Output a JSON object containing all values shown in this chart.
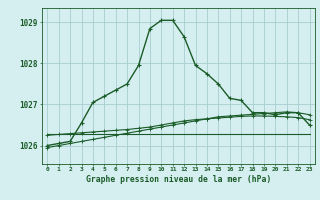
{
  "title": "Graphe pression niveau de la mer (hPa)",
  "xlabel_hours": [
    0,
    1,
    2,
    3,
    4,
    5,
    6,
    7,
    8,
    9,
    10,
    11,
    12,
    13,
    14,
    15,
    16,
    17,
    18,
    19,
    20,
    21,
    22,
    23
  ],
  "ylim": [
    1025.55,
    1029.35
  ],
  "yticks": [
    1026,
    1027,
    1028,
    1029
  ],
  "background_color": "#d5eef0",
  "grid_color": "#a8cdd0",
  "line_color": "#1a5c28",
  "main_line": {
    "x": [
      0,
      1,
      2,
      3,
      4,
      5,
      6,
      7,
      8,
      9,
      10,
      11,
      12,
      13,
      14,
      15,
      16,
      17,
      18,
      19,
      20,
      21,
      22,
      23
    ],
    "y": [
      1026.0,
      1026.05,
      1026.1,
      1026.55,
      1027.05,
      1027.2,
      1027.35,
      1027.5,
      1027.95,
      1028.85,
      1029.05,
      1029.05,
      1028.65,
      1027.95,
      1027.75,
      1027.5,
      1027.15,
      1027.1,
      1026.8,
      1026.8,
      1026.75,
      1026.8,
      1026.8,
      1026.5
    ]
  },
  "line2": {
    "x": [
      0,
      1,
      2,
      3,
      4,
      5,
      6,
      7,
      8,
      9,
      10,
      11,
      12,
      13,
      14,
      15,
      16,
      17,
      18,
      19,
      20,
      21,
      22,
      23
    ],
    "y": [
      1025.95,
      1026.0,
      1026.05,
      1026.1,
      1026.15,
      1026.2,
      1026.25,
      1026.3,
      1026.35,
      1026.4,
      1026.45,
      1026.5,
      1026.55,
      1026.6,
      1026.65,
      1026.7,
      1026.72,
      1026.74,
      1026.76,
      1026.78,
      1026.8,
      1026.82,
      1026.8,
      1026.75
    ]
  },
  "line3": {
    "x": [
      0,
      1,
      2,
      3,
      4,
      5,
      6,
      7,
      8,
      9,
      10,
      11,
      12,
      13,
      14,
      15,
      16,
      17,
      18,
      19,
      20,
      21,
      22,
      23
    ],
    "y": [
      1026.25,
      1026.27,
      1026.29,
      1026.31,
      1026.33,
      1026.35,
      1026.37,
      1026.39,
      1026.42,
      1026.45,
      1026.5,
      1026.55,
      1026.6,
      1026.63,
      1026.65,
      1026.67,
      1026.69,
      1026.71,
      1026.72,
      1026.72,
      1026.71,
      1026.7,
      1026.68,
      1026.63
    ]
  },
  "line4": {
    "x": [
      0,
      23
    ],
    "y": [
      1026.28,
      1026.28
    ]
  }
}
